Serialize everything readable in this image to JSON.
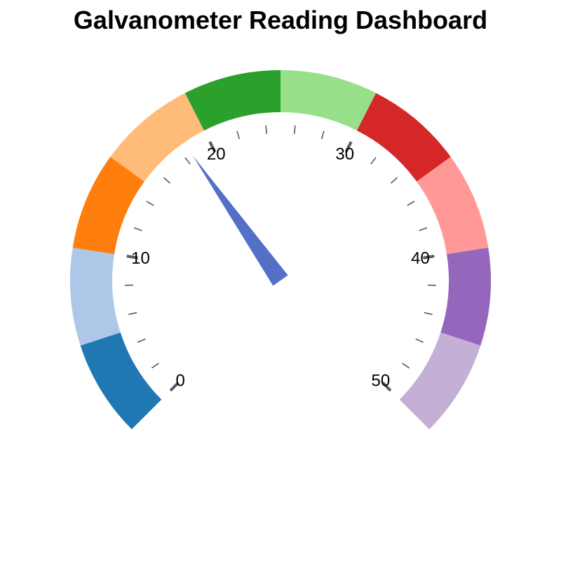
{
  "chart_data": {
    "type": "gauge",
    "title": "Galvanometer Reading Dashboard",
    "min": 0,
    "max": 50,
    "value": 18.5,
    "major_ticks": [
      0,
      10,
      20,
      30,
      40,
      50
    ],
    "minor_step": 2,
    "bands": [
      {
        "from": 0,
        "to": 5,
        "color": "#1f77b4"
      },
      {
        "from": 5,
        "to": 10,
        "color": "#aec7e8"
      },
      {
        "from": 10,
        "to": 15,
        "color": "#ff7f0e"
      },
      {
        "from": 15,
        "to": 20,
        "color": "#ffbb78"
      },
      {
        "from": 20,
        "to": 25,
        "color": "#2ca02c"
      },
      {
        "from": 25,
        "to": 30,
        "color": "#98df8a"
      },
      {
        "from": 30,
        "to": 35,
        "color": "#d62728"
      },
      {
        "from": 35,
        "to": 40,
        "color": "#ff9896"
      },
      {
        "from": 40,
        "to": 45,
        "color": "#9467bd"
      },
      {
        "from": 45,
        "to": 50,
        "color": "#c5b0d5"
      }
    ],
    "needle_color": "#5470c6",
    "tick_color": "#555a6b"
  }
}
